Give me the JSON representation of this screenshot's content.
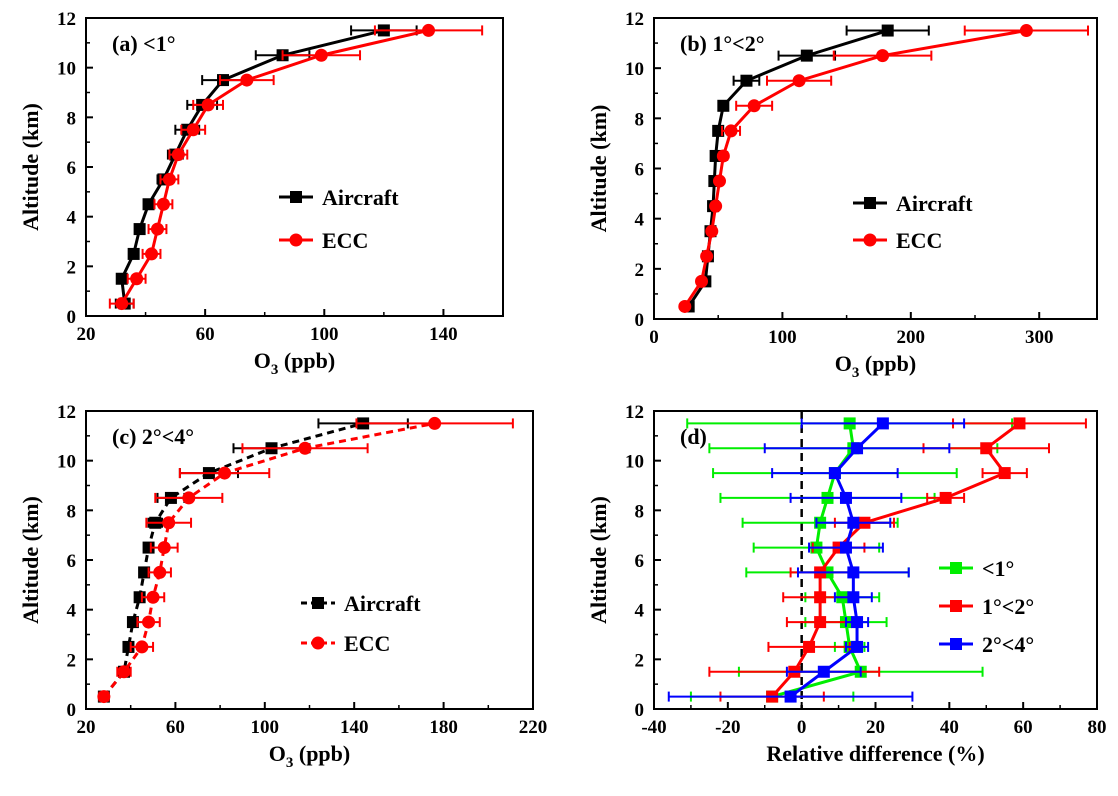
{
  "chart_data": [
    {
      "type": "line",
      "panel_label": "(a) <1°",
      "xlabel": "O",
      "xlabel_sub": "3",
      "xlabel_unit": " (ppb)",
      "ylabel": "Altitude (km)",
      "xlim": [
        20,
        160
      ],
      "ylim": [
        0,
        12
      ],
      "xticks": [
        20,
        60,
        100,
        140
      ],
      "yticks": [
        0,
        2,
        4,
        6,
        8,
        10,
        12
      ],
      "legend_position": "center-right",
      "series": [
        {
          "name": "Aircraft",
          "color": "#000000",
          "marker": "square",
          "dash": false,
          "points": [
            {
              "x": 33,
              "y": 0.5,
              "err": 3
            },
            {
              "x": 32,
              "y": 1.5,
              "err": 1
            },
            {
              "x": 36,
              "y": 2.5,
              "err": 1
            },
            {
              "x": 38,
              "y": 3.5,
              "err": 1.5
            },
            {
              "x": 41,
              "y": 4.5,
              "err": 1
            },
            {
              "x": 46,
              "y": 5.5,
              "err": 2
            },
            {
              "x": 50,
              "y": 6.5,
              "err": 2.5
            },
            {
              "x": 54,
              "y": 7.5,
              "err": 4
            },
            {
              "x": 59,
              "y": 8.5,
              "err": 5
            },
            {
              "x": 66,
              "y": 9.5,
              "err": 7
            },
            {
              "x": 86,
              "y": 10.5,
              "err": 9
            },
            {
              "x": 120,
              "y": 11.5,
              "err": 11
            }
          ]
        },
        {
          "name": "ECC",
          "color": "#ff0000",
          "marker": "circle",
          "dash": false,
          "points": [
            {
              "x": 32,
              "y": 0.5,
              "err": 4
            },
            {
              "x": 37,
              "y": 1.5,
              "err": 3
            },
            {
              "x": 42,
              "y": 2.5,
              "err": 3
            },
            {
              "x": 44,
              "y": 3.5,
              "err": 3
            },
            {
              "x": 46,
              "y": 4.5,
              "err": 3
            },
            {
              "x": 48,
              "y": 5.5,
              "err": 3
            },
            {
              "x": 51,
              "y": 6.5,
              "err": 3
            },
            {
              "x": 56,
              "y": 7.5,
              "err": 4
            },
            {
              "x": 61,
              "y": 8.5,
              "err": 5
            },
            {
              "x": 74,
              "y": 9.5,
              "err": 9
            },
            {
              "x": 99,
              "y": 10.5,
              "err": 13
            },
            {
              "x": 135,
              "y": 11.5,
              "err": 18
            }
          ]
        }
      ]
    },
    {
      "type": "line",
      "panel_label": "(b) 1°<2°",
      "xlabel": "O",
      "xlabel_sub": "3",
      "xlabel_unit": " (ppb)",
      "ylabel": "Altitude (km)",
      "xlim": [
        0,
        345
      ],
      "ylim": [
        0,
        12
      ],
      "xticks": [
        0,
        100,
        200,
        300
      ],
      "yticks": [
        0,
        2,
        4,
        6,
        8,
        10,
        12
      ],
      "legend_position": "center-right",
      "series": [
        {
          "name": "Aircraft",
          "color": "#000000",
          "marker": "square",
          "dash": false,
          "points": [
            {
              "x": 27,
              "y": 0.5,
              "err": 2
            },
            {
              "x": 40,
              "y": 1.5,
              "err": 2
            },
            {
              "x": 42,
              "y": 2.5,
              "err": 2
            },
            {
              "x": 44,
              "y": 3.5,
              "err": 2
            },
            {
              "x": 46,
              "y": 4.5,
              "err": 2
            },
            {
              "x": 47,
              "y": 5.5,
              "err": 2
            },
            {
              "x": 48,
              "y": 6.5,
              "err": 2
            },
            {
              "x": 50,
              "y": 7.5,
              "err": 2
            },
            {
              "x": 54,
              "y": 8.5,
              "err": 3
            },
            {
              "x": 72,
              "y": 9.5,
              "err": 10
            },
            {
              "x": 119,
              "y": 10.5,
              "err": 22
            },
            {
              "x": 182,
              "y": 11.5,
              "err": 32
            }
          ]
        },
        {
          "name": "ECC",
          "color": "#ff0000",
          "marker": "circle",
          "dash": false,
          "points": [
            {
              "x": 24,
              "y": 0.5,
              "err": 2
            },
            {
              "x": 37,
              "y": 1.5,
              "err": 2
            },
            {
              "x": 41,
              "y": 2.5,
              "err": 2
            },
            {
              "x": 45,
              "y": 3.5,
              "err": 2
            },
            {
              "x": 48,
              "y": 4.5,
              "err": 2
            },
            {
              "x": 51,
              "y": 5.5,
              "err": 2
            },
            {
              "x": 54,
              "y": 6.5,
              "err": 3
            },
            {
              "x": 60,
              "y": 7.5,
              "err": 7
            },
            {
              "x": 78,
              "y": 8.5,
              "err": 14
            },
            {
              "x": 113,
              "y": 9.5,
              "err": 25
            },
            {
              "x": 178,
              "y": 10.5,
              "err": 38
            },
            {
              "x": 290,
              "y": 11.5,
              "err": 48
            }
          ]
        }
      ]
    },
    {
      "type": "line",
      "panel_label": "(c) 2°<4°",
      "xlabel": "O",
      "xlabel_sub": "3",
      "xlabel_unit": " (ppb)",
      "ylabel": "Altitude (km)",
      "xlim": [
        20,
        220
      ],
      "ylim": [
        0,
        12
      ],
      "xticks": [
        20,
        60,
        100,
        140,
        180,
        220
      ],
      "yticks": [
        0,
        2,
        4,
        6,
        8,
        10,
        12
      ],
      "legend_position": "center-right",
      "series": [
        {
          "name": "Aircraft",
          "color": "#000000",
          "marker": "square",
          "dash": true,
          "points": [
            {
              "x": 28,
              "y": 0.5,
              "err": 2
            },
            {
              "x": 37,
              "y": 1.5,
              "err": 2
            },
            {
              "x": 39,
              "y": 2.5,
              "err": 2
            },
            {
              "x": 41,
              "y": 3.5,
              "err": 2
            },
            {
              "x": 44,
              "y": 4.5,
              "err": 2
            },
            {
              "x": 46,
              "y": 5.5,
              "err": 2
            },
            {
              "x": 48,
              "y": 6.5,
              "err": 2
            },
            {
              "x": 51,
              "y": 7.5,
              "err": 3
            },
            {
              "x": 58,
              "y": 8.5,
              "err": 6
            },
            {
              "x": 75,
              "y": 9.5,
              "err": 13
            },
            {
              "x": 103,
              "y": 10.5,
              "err": 17
            },
            {
              "x": 144,
              "y": 11.5,
              "err": 20
            }
          ]
        },
        {
          "name": "ECC",
          "color": "#ff0000",
          "marker": "circle",
          "dash": true,
          "points": [
            {
              "x": 28,
              "y": 0.5,
              "err": 2
            },
            {
              "x": 37,
              "y": 1.5,
              "err": 3
            },
            {
              "x": 45,
              "y": 2.5,
              "err": 5
            },
            {
              "x": 48,
              "y": 3.5,
              "err": 5
            },
            {
              "x": 50,
              "y": 4.5,
              "err": 5
            },
            {
              "x": 53,
              "y": 5.5,
              "err": 5
            },
            {
              "x": 55,
              "y": 6.5,
              "err": 6
            },
            {
              "x": 57,
              "y": 7.5,
              "err": 10
            },
            {
              "x": 66,
              "y": 8.5,
              "err": 15
            },
            {
              "x": 82,
              "y": 9.5,
              "err": 20
            },
            {
              "x": 118,
              "y": 10.5,
              "err": 28
            },
            {
              "x": 176,
              "y": 11.5,
              "err": 35
            }
          ]
        }
      ]
    },
    {
      "type": "line",
      "panel_label": "(d)",
      "xlabel": "Relative difference (%)",
      "xlabel_sub": "",
      "xlabel_unit": "",
      "ylabel": "Altitude (km)",
      "xlim": [
        -40,
        80
      ],
      "ylim": [
        0,
        12
      ],
      "xticks": [
        -40,
        -20,
        0,
        20,
        40,
        60,
        80
      ],
      "yticks": [
        0,
        2,
        4,
        6,
        8,
        10,
        12
      ],
      "zero_line": 0,
      "legend_position": "center-right",
      "series": [
        {
          "name": "<1°",
          "color": "#00ee00",
          "marker": "square",
          "dash": false,
          "points": [
            {
              "x": -8,
              "y": 0.5,
              "err": 22
            },
            {
              "x": 16,
              "y": 1.5,
              "err": 33
            },
            {
              "x": 13,
              "y": 2.5,
              "err": 4
            },
            {
              "x": 12,
              "y": 3.5,
              "err": 11
            },
            {
              "x": 11,
              "y": 4.5,
              "err": 10
            },
            {
              "x": 7,
              "y": 5.5,
              "err": 22
            },
            {
              "x": 4,
              "y": 6.5,
              "err": 17
            },
            {
              "x": 5,
              "y": 7.5,
              "err": 21
            },
            {
              "x": 7,
              "y": 8.5,
              "err": 29
            },
            {
              "x": 9,
              "y": 9.5,
              "err": 33
            },
            {
              "x": 14,
              "y": 10.5,
              "err": 39
            },
            {
              "x": 13,
              "y": 11.5,
              "err": 44
            }
          ]
        },
        {
          "name": "1°<2°",
          "color": "#ff0000",
          "marker": "square",
          "dash": false,
          "points": [
            {
              "x": -8,
              "y": 0.5,
              "err": 14
            },
            {
              "x": -2,
              "y": 1.5,
              "err": 23
            },
            {
              "x": 2,
              "y": 2.5,
              "err": 11
            },
            {
              "x": 5,
              "y": 3.5,
              "err": 9
            },
            {
              "x": 5,
              "y": 4.5,
              "err": 10
            },
            {
              "x": 5,
              "y": 5.5,
              "err": 8
            },
            {
              "x": 10,
              "y": 6.5,
              "err": 7
            },
            {
              "x": 17,
              "y": 7.5,
              "err": 8
            },
            {
              "x": 39,
              "y": 8.5,
              "err": 5
            },
            {
              "x": 55,
              "y": 9.5,
              "err": 6
            },
            {
              "x": 50,
              "y": 10.5,
              "err": 17
            },
            {
              "x": 59,
              "y": 11.5,
              "err": 18
            }
          ]
        },
        {
          "name": "2°<4°",
          "color": "#0000ff",
          "marker": "square",
          "dash": false,
          "points": [
            {
              "x": -3,
              "y": 0.5,
              "err": 33
            },
            {
              "x": 6,
              "y": 1.5,
              "err": 10
            },
            {
              "x": 15,
              "y": 2.5,
              "err": 3
            },
            {
              "x": 15,
              "y": 3.5,
              "err": 3
            },
            {
              "x": 14,
              "y": 4.5,
              "err": 5
            },
            {
              "x": 14,
              "y": 5.5,
              "err": 15
            },
            {
              "x": 12,
              "y": 6.5,
              "err": 10
            },
            {
              "x": 14,
              "y": 7.5,
              "err": 10
            },
            {
              "x": 12,
              "y": 8.5,
              "err": 15
            },
            {
              "x": 9,
              "y": 9.5,
              "err": 17
            },
            {
              "x": 15,
              "y": 10.5,
              "err": 25
            },
            {
              "x": 22,
              "y": 11.5,
              "err": 22
            }
          ]
        }
      ]
    }
  ]
}
